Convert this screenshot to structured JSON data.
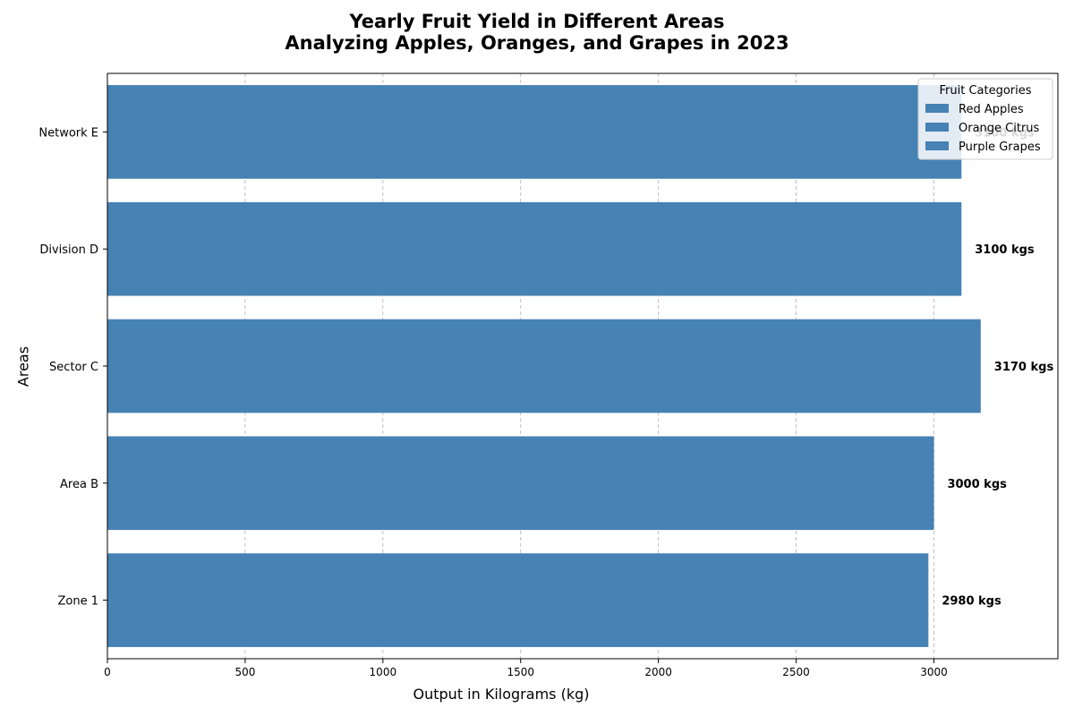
{
  "chart_data": {
    "type": "bar",
    "orientation": "horizontal",
    "title": "Yearly Fruit Yield in Different Areas",
    "subtitle": "Analyzing Apples, Oranges, and Grapes in 2023",
    "xlabel": "Output in Kilograms (kg)",
    "ylabel": "Areas",
    "categories": [
      "Zone 1",
      "Area B",
      "Sector C",
      "Division D",
      "Network E"
    ],
    "values": [
      2980,
      3000,
      3170,
      3100,
      3100
    ],
    "data_labels": [
      "2980 kgs",
      "3000 kgs",
      "3170 kgs",
      "3100 kgs",
      "3100 kgs"
    ],
    "xlim": [
      0,
      3450
    ],
    "xticks": [
      0,
      500,
      1000,
      1500,
      2000,
      2500,
      3000
    ],
    "grid": "x-dashed",
    "bar_color": "#4682b4",
    "legend": {
      "title": "Fruit Categories",
      "placement": "top-right",
      "entries": [
        "Red Apples",
        "Orange Citrus",
        "Purple Grapes"
      ]
    }
  }
}
